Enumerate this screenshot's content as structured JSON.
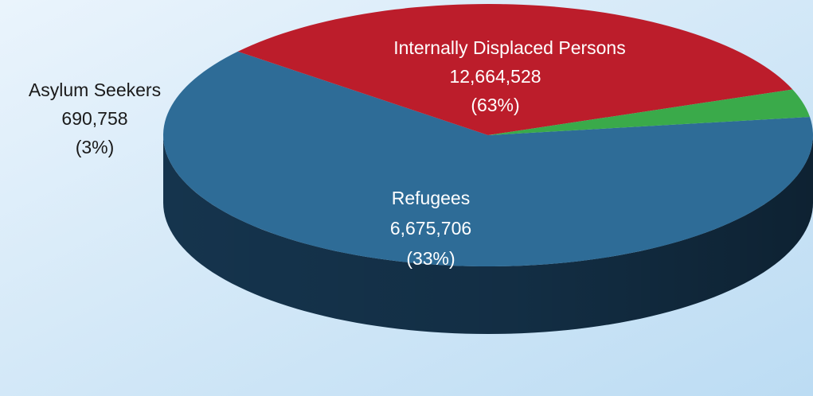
{
  "chart_data": {
    "type": "pie",
    "title": "",
    "style": "3d",
    "slices": [
      {
        "name": "Internally Displaced Persons",
        "value": 12664528,
        "value_label": "12,664,528",
        "percent_label": "(63%)",
        "color": "#2e6c97",
        "side_color": "#15344d"
      },
      {
        "name": "Refugees",
        "value": 6675706,
        "value_label": "6,675,706",
        "percent_label": "(33%)",
        "color": "#bc1d2b",
        "side_color": "#7a1018"
      },
      {
        "name": "Asylum Seekers",
        "value": 690758,
        "value_label": "690,758",
        "percent_label": "(3%)",
        "color": "#3aaa4a",
        "side_color": "#1f6a2a"
      }
    ],
    "legend": "none"
  },
  "colors": {
    "background_top": "#eaf4fc",
    "background_bottom": "#bcdcf3"
  }
}
